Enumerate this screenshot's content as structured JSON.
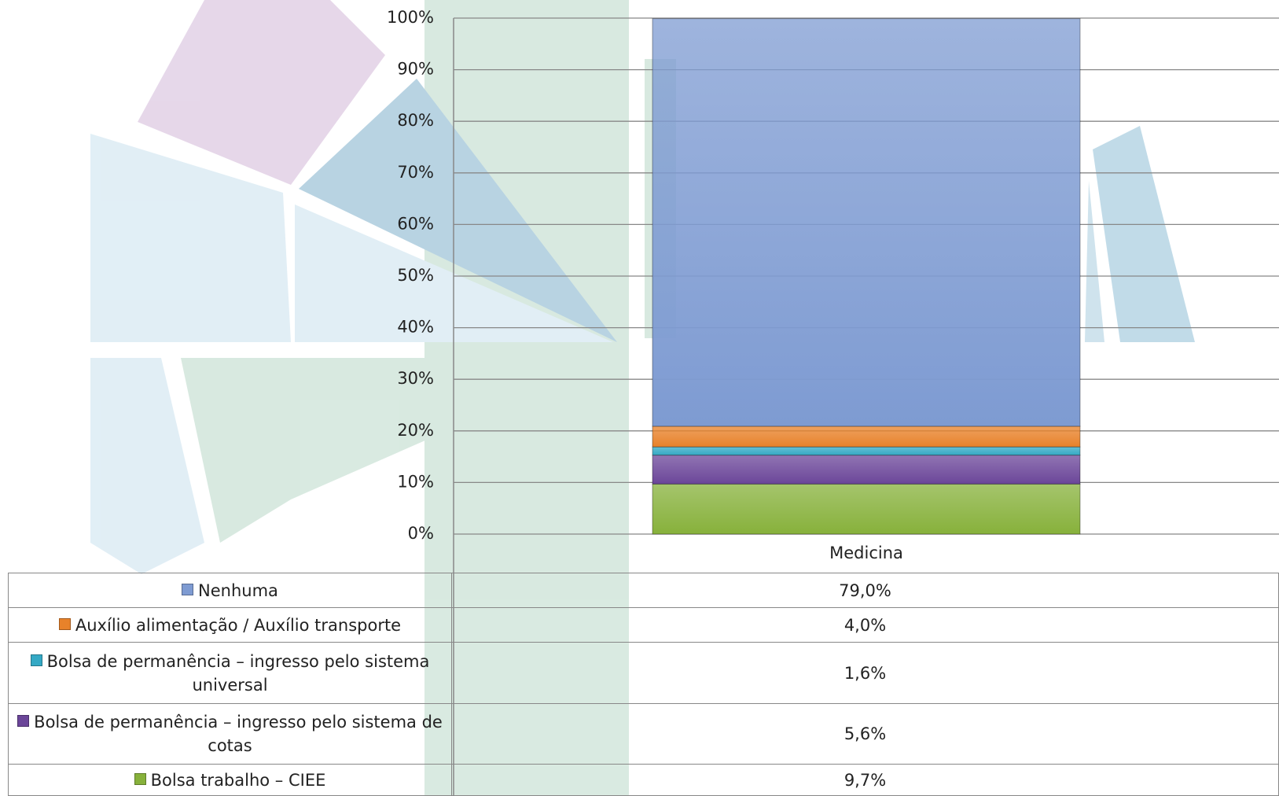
{
  "chart_data": {
    "type": "stacked-bar",
    "categories": [
      "Medicina"
    ],
    "series": [
      {
        "name": "Nenhuma",
        "color": "#7e9bd2",
        "values": [
          79.0
        ],
        "value_labels": [
          "79,0%"
        ]
      },
      {
        "name": "Auxílio alimentação / Auxílio transporte",
        "color": "#e8822a",
        "values": [
          4.0
        ],
        "value_labels": [
          "4,0%"
        ]
      },
      {
        "name": "Bolsa de permanência – ingresso pelo sistema universal",
        "color": "#34a9c5",
        "values": [
          1.6
        ],
        "value_labels": [
          "1,6%"
        ]
      },
      {
        "name": "Bolsa de permanência – ingresso pelo sistema de cotas",
        "color": "#6b4699",
        "values": [
          5.6
        ],
        "value_labels": [
          "5,6%"
        ]
      },
      {
        "name": "Bolsa trabalho – CIEE",
        "color": "#87b13b",
        "values": [
          9.7
        ],
        "value_labels": [
          "9,7%"
        ]
      }
    ],
    "ylim": [
      0,
      100
    ],
    "yticks": [
      {
        "value": 0,
        "label": "0%"
      },
      {
        "value": 10,
        "label": "10%"
      },
      {
        "value": 20,
        "label": "20%"
      },
      {
        "value": 30,
        "label": "30%"
      },
      {
        "value": 40,
        "label": "40%"
      },
      {
        "value": 50,
        "label": "50%"
      },
      {
        "value": 60,
        "label": "60%"
      },
      {
        "value": 70,
        "label": "70%"
      },
      {
        "value": 80,
        "label": "80%"
      },
      {
        "value": 90,
        "label": "90%"
      },
      {
        "value": 100,
        "label": "100%"
      }
    ],
    "grid": true
  }
}
